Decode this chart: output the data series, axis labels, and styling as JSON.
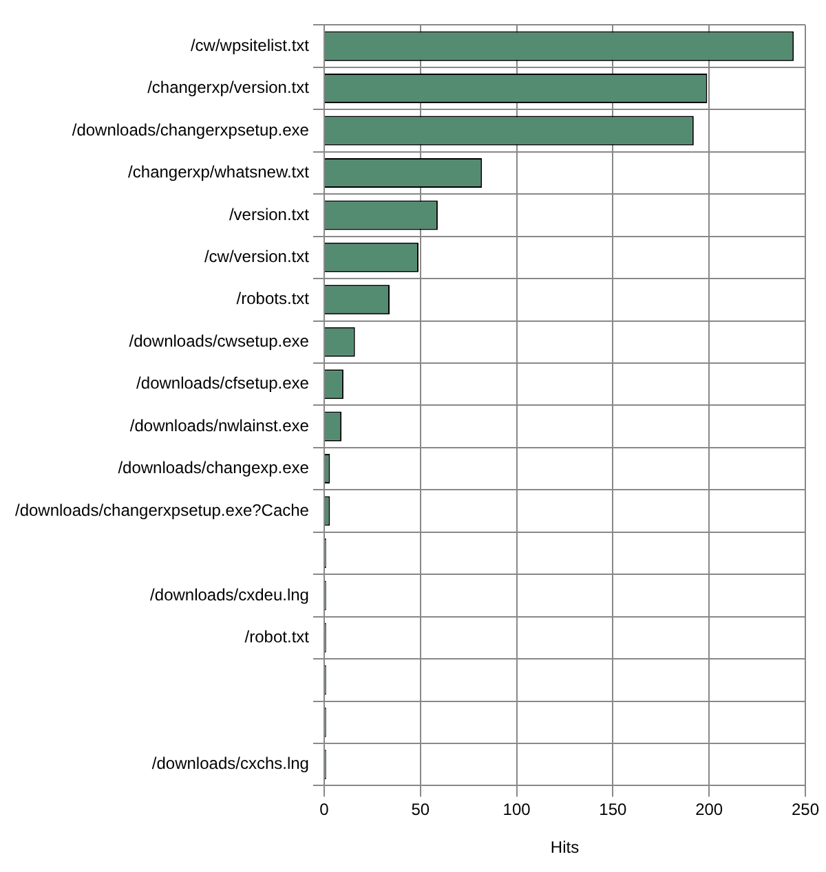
{
  "chart_data": {
    "type": "bar",
    "orientation": "horizontal",
    "xlabel": "Hits",
    "categories": [
      "/cw/wpsitelist.txt",
      "/changerxp/version.txt",
      "/downloads/changerxpsetup.exe",
      "/changerxp/whatsnew.txt",
      "/version.txt",
      "/cw/version.txt",
      "/robots.txt",
      "/downloads/cwsetup.exe",
      "/downloads/cfsetup.exe",
      "/downloads/nwlainst.exe",
      "/downloads/changexp.exe",
      "/downloads/changerxpsetup.exe?Cache",
      null,
      "/downloads/cxdeu.lng",
      "/robot.txt",
      null,
      null,
      "/downloads/cxchs.lng"
    ],
    "values": [
      244,
      199,
      192,
      82,
      59,
      49,
      34,
      16,
      10,
      9,
      3,
      3,
      1,
      1,
      1,
      1,
      1,
      1
    ],
    "color": "#548c72",
    "xlim": [
      0,
      250
    ],
    "xticks": [
      0,
      50,
      100,
      150,
      200,
      250
    ],
    "grid": true
  }
}
